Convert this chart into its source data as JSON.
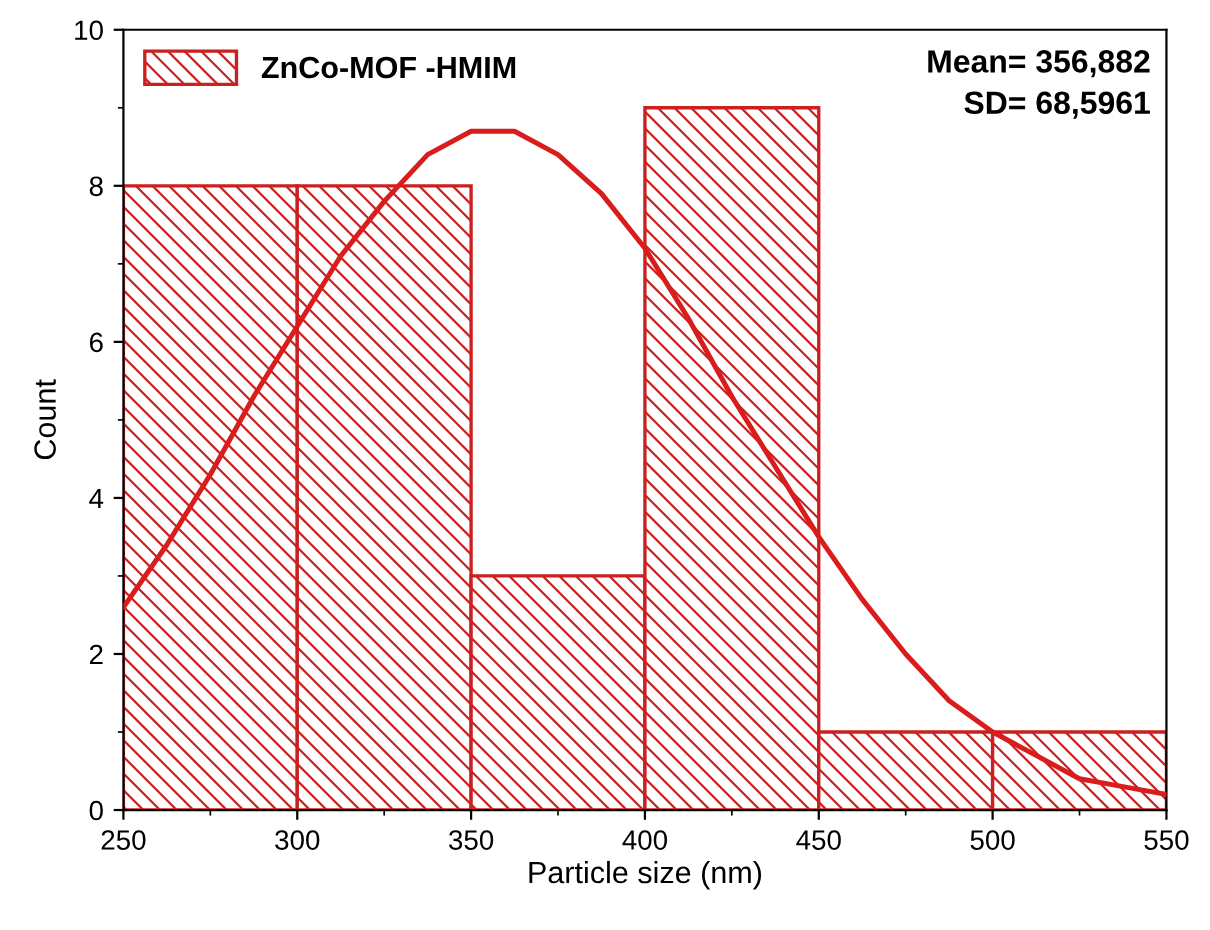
{
  "chart_data": {
    "type": "histogram",
    "xlabel": "Particle size (nm)",
    "ylabel": "Count",
    "series": [
      {
        "name": "ZnCo-MOF -HMIM",
        "color": "#cc1f1f",
        "bins": [
          250,
          300,
          350,
          400,
          450,
          500,
          550
        ],
        "values": [
          8,
          8,
          3,
          9,
          1,
          1
        ]
      },
      {
        "type": "line",
        "color": "#d91c1c",
        "x": [
          250,
          262.5,
          275,
          287.5,
          300,
          312.5,
          325,
          337.5,
          350,
          357,
          362.5,
          375,
          387.5,
          400,
          412.5,
          425,
          437.5,
          450,
          462.5,
          475,
          487.5,
          500,
          512.5,
          525,
          537.5,
          550
        ],
        "values": [
          2.6,
          3.4,
          4.3,
          5.3,
          6.2,
          7.1,
          7.8,
          8.4,
          8.7,
          8.7,
          8.7,
          8.4,
          7.9,
          7.2,
          6.3,
          5.3,
          4.4,
          3.5,
          2.7,
          2.0,
          1.4,
          1.0,
          0.7,
          0.4,
          0.3,
          0.2
        ]
      }
    ],
    "annotations": [
      "Mean= 356,882\nSD= 68,5961"
    ],
    "xlim": [
      250,
      550
    ],
    "xticks": [
      250,
      300,
      350,
      400,
      450,
      500,
      550
    ],
    "ylim": [
      0,
      10
    ],
    "yticks": [
      0,
      2,
      4,
      6,
      8,
      10
    ],
    "grid": false,
    "legend": "top left"
  }
}
